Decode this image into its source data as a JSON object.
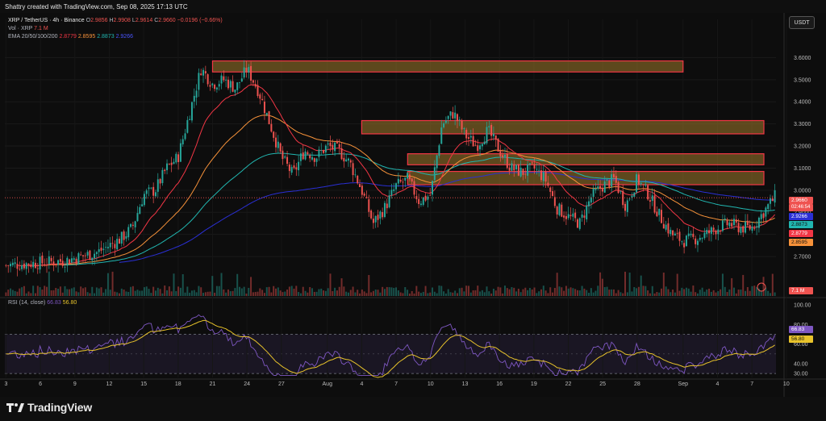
{
  "header": {
    "credit": "Shattry created with TradingView.com, Sep 08, 2025 17:13 UTC"
  },
  "legend": {
    "symbol_line": "XRP / TetherUS · 4h · Binance",
    "o_label": "O",
    "o_val": "2.9856",
    "h_label": "H",
    "h_val": "2.9908",
    "l_label": "L",
    "l_val": "2.9614",
    "c_label": "C",
    "c_val": "2.9660",
    "chg_val": "−0.0196 (−0.66%)",
    "vol_label": "Vol · XRP",
    "vol_val": "7.1 M",
    "ema_label": "EMA 20/50/100/200",
    "ema_vals": [
      "2.8779",
      "2.8595",
      "2.8873",
      "2.9266"
    ],
    "rsi_label": "RSI (14, close)",
    "rsi_val": "66.83",
    "rsi_ma": "56.80"
  },
  "currency_button": "USDT",
  "price_tags": {
    "last": "2.9660",
    "countdown": "02:46:54",
    "ema200": "2.9266",
    "ema100": "2.8873",
    "ema20": "2.8779",
    "ema50": "2.8595",
    "vol": "7.1 M",
    "rsi": "66.83",
    "rsi_ma": "56.80"
  },
  "colors": {
    "up": "#26a69a",
    "down": "#ef5350",
    "ema20": "#f23645",
    "ema50": "#f7923a",
    "ema100": "#21b6b0",
    "ema200": "#2a2fd4",
    "rsi": "#7e57c2",
    "rsi_ma": "#e8c32b",
    "zone_fill": "#a07a2c",
    "zone_border": "#f23645"
  },
  "footer": {
    "brand": "TradingView"
  },
  "chart_data": {
    "type": "candlestick",
    "price_axis": [
      "3.6000",
      "3.5000",
      "3.4000",
      "3.3000",
      "3.2000",
      "3.1000",
      "3.0000",
      "2.9000",
      "2.8000",
      "2.7000"
    ],
    "ylim": [
      2.62,
      3.7
    ],
    "x_ticks": [
      "3",
      "6",
      "9",
      "12",
      "15",
      "18",
      "21",
      "24",
      "27",
      "Aug",
      "4",
      "7",
      "10",
      "13",
      "16",
      "19",
      "22",
      "25",
      "28",
      "Sep",
      "4",
      "7",
      "10"
    ],
    "close_path": [
      [
        0,
        2.66
      ],
      [
        5,
        2.68
      ],
      [
        8,
        2.72
      ],
      [
        9,
        2.75
      ],
      [
        10,
        2.78
      ],
      [
        11,
        2.83
      ],
      [
        12,
        2.98
      ],
      [
        13,
        3.0
      ],
      [
        14,
        3.1
      ],
      [
        15,
        3.15
      ],
      [
        16,
        3.35
      ],
      [
        17,
        3.55
      ],
      [
        18,
        3.48
      ],
      [
        19,
        3.5
      ],
      [
        20,
        3.46
      ],
      [
        21,
        3.55
      ],
      [
        22,
        3.45
      ],
      [
        23,
        3.3
      ],
      [
        24,
        3.15
      ],
      [
        25,
        3.07
      ],
      [
        26,
        3.18
      ],
      [
        27,
        3.15
      ],
      [
        28,
        3.2
      ],
      [
        29,
        3.18
      ],
      [
        30,
        3.12
      ],
      [
        31,
        3.0
      ],
      [
        32,
        2.85
      ],
      [
        33,
        2.92
      ],
      [
        34,
        3.02
      ],
      [
        35,
        3.05
      ],
      [
        36,
        2.95
      ],
      [
        37,
        2.98
      ],
      [
        38,
        3.3
      ],
      [
        39,
        3.35
      ],
      [
        40,
        3.25
      ],
      [
        41,
        3.2
      ],
      [
        42,
        3.27
      ],
      [
        43,
        3.18
      ],
      [
        44,
        3.1
      ],
      [
        45,
        3.08
      ],
      [
        46,
        3.1
      ],
      [
        47,
        3.05
      ],
      [
        48,
        2.92
      ],
      [
        49,
        2.88
      ],
      [
        50,
        2.85
      ],
      [
        51,
        2.97
      ],
      [
        52,
        3.02
      ],
      [
        53,
        3.05
      ],
      [
        54,
        2.93
      ],
      [
        55,
        3.05
      ],
      [
        56,
        2.98
      ],
      [
        57,
        2.88
      ],
      [
        58,
        2.8
      ],
      [
        59,
        2.77
      ],
      [
        60,
        2.78
      ],
      [
        61,
        2.8
      ],
      [
        62,
        2.83
      ],
      [
        63,
        2.85
      ],
      [
        64,
        2.83
      ],
      [
        65,
        2.83
      ],
      [
        66,
        2.9
      ],
      [
        67,
        2.97
      ]
    ],
    "volume_range": [
      0,
      7.1
    ],
    "rsi_axis": [
      "100.00",
      "80.00",
      "60.00",
      "40.00",
      "30.00"
    ],
    "rsi_ylim": [
      26,
      100
    ],
    "rsi_bands": [
      70,
      30
    ],
    "resistance_zones": [
      {
        "start": 18.0,
        "end": 59.0,
        "low": 3.535,
        "high": 3.585
      },
      {
        "start": 31.0,
        "end": 67.5,
        "low": 3.255,
        "high": 3.315
      },
      {
        "start": 35.0,
        "end": 67.5,
        "low": 3.115,
        "high": 3.165
      },
      {
        "start": 35.0,
        "end": 67.5,
        "low": 3.025,
        "high": 3.085
      }
    ]
  }
}
